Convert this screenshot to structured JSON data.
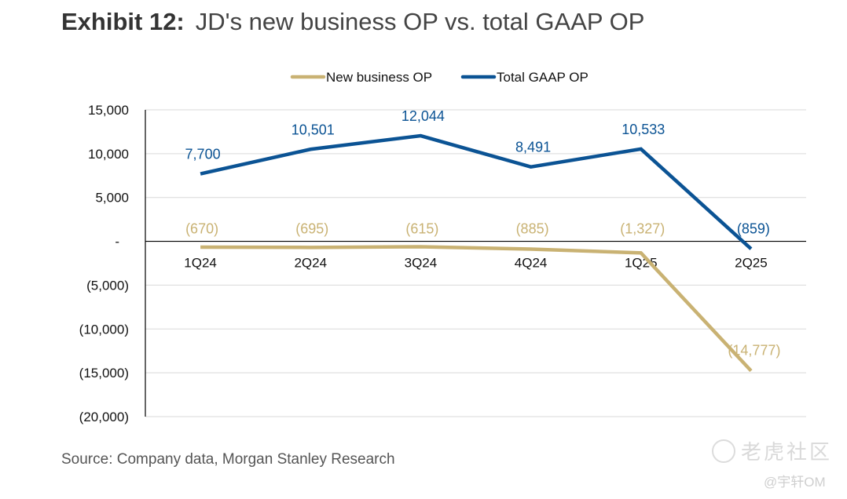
{
  "header": {
    "exhibit": "Exhibit 12:",
    "title": "JD's new business OP vs. total GAAP OP"
  },
  "footer": {
    "source": "Source: Company data, Morgan Stanley Research"
  },
  "watermark": {
    "brand": "老虎社区",
    "handle": "@宇轩OM"
  },
  "chart_data": {
    "type": "line",
    "title": "JD's new business OP vs. total GAAP OP",
    "xlabel": "",
    "ylabel": "",
    "categories": [
      "1Q24",
      "2Q24",
      "3Q24",
      "4Q24",
      "1Q25",
      "2Q25"
    ],
    "series": [
      {
        "name": "New business OP",
        "color": "#c9b273",
        "values": [
          -670,
          -695,
          -615,
          -885,
          -1327,
          -14777
        ],
        "labels": [
          "(670)",
          "(695)",
          "(615)",
          "(885)",
          "(1,327)",
          "(14,777)"
        ]
      },
      {
        "name": "Total GAAP OP",
        "color": "#0b5394",
        "values": [
          7700,
          10501,
          12044,
          8491,
          10533,
          -859
        ],
        "labels": [
          "7,700",
          "10,501",
          "12,044",
          "8,491",
          "10,533",
          "(859)"
        ]
      }
    ],
    "ylim": [
      -20000,
      15000
    ],
    "yticks": [
      15000,
      10000,
      5000,
      0,
      -5000,
      -10000,
      -15000,
      -20000
    ],
    "ytick_labels": [
      "15,000",
      "10,000",
      "5,000",
      "-",
      "(5,000)",
      "(10,000)",
      "(15,000)",
      "(20,000)"
    ],
    "grid": true,
    "legend": "top-center"
  }
}
